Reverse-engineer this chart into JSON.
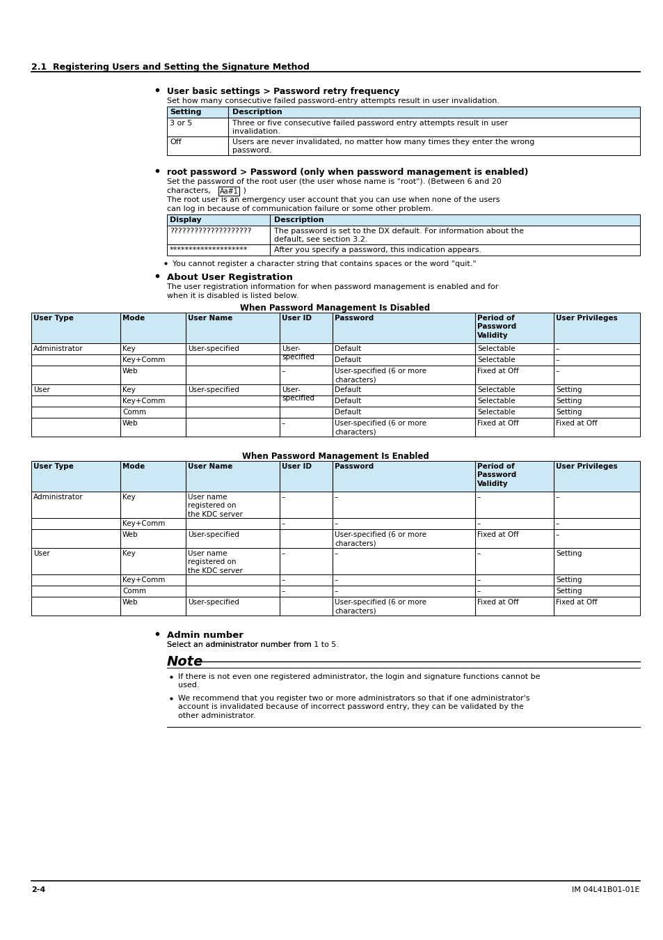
{
  "page_background": "#ffffff",
  "section_title": "2.1  Registering Users and Setting the Signature Method",
  "bullet1_title": "User basic settings > Password retry frequency",
  "bullet1_desc": "Set how many consecutive failed password-entry attempts result in user invalidation.",
  "table1_header": [
    "Setting",
    "Description"
  ],
  "table1_rows": [
    [
      "3 or 5",
      "Three or five consecutive failed password entry attempts result in user\ninvalidation."
    ],
    [
      "Off",
      "Users are never invalidated, no matter how many times they enter the wrong\npassword."
    ]
  ],
  "bullet2_title": "root password > Password (only when password management is enabled)",
  "bullet2_desc1": "Set the password of the root user (the user whose name is \"root\"). (Between 6 and 20",
  "bullet2_desc2": "characters,  Aa#1  )",
  "bullet2_desc3": "The root user is an emergency user account that you can use when none of the users",
  "bullet2_desc4": "can log in because of communication failure or some other problem.",
  "table2_header": [
    "Display",
    "Description"
  ],
  "table2_rows": [
    [
      "????????????????????",
      "The password is set to the DX default. For information about the\ndefault, see section 3.2."
    ],
    [
      "********************",
      "After you specify a password, this indication appears."
    ]
  ],
  "bullet2_note": "You cannot register a character string that contains spaces or the word \"quit.\"",
  "bullet3_title": "About User Registration",
  "bullet3_desc1": "The user registration information for when password management is enabled and for",
  "bullet3_desc2": "when it is disabled is listed below.",
  "table3_title": "When Password Management Is Disabled",
  "table3_header": [
    "User Type",
    "Mode",
    "User Name",
    "User ID",
    "Password",
    "Period of\nPassword\nValidity",
    "User Privileges"
  ],
  "table4_title": "When Password Management Is Enabled",
  "table4_header": [
    "User Type",
    "Mode",
    "User Name",
    "User ID",
    "Password",
    "Period of\nPassword\nValidity",
    "User Privileges"
  ],
  "bullet4_title": "Admin number",
  "bullet4_desc": "Select an administrator number from 1 to 5.",
  "note_items": [
    "If there is not even one registered administrator, the login and signature functions cannot be\nused.",
    "We recommend that you register two or more administrators so that if one administrator's\naccount is invalidated because of incorrect password entry, they can be validated by the\nother administrator."
  ],
  "footer_left": "2-4",
  "footer_right": "IM 04L41B01-01E",
  "header_color": "#cce8f4",
  "table_border_color": "#000000"
}
